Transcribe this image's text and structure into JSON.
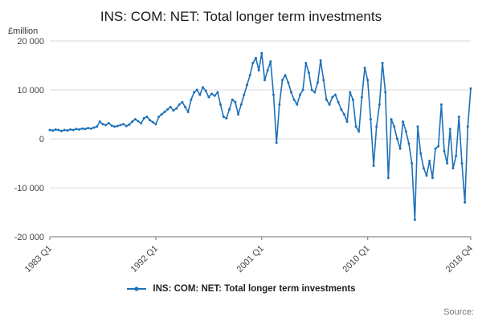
{
  "chart_data": {
    "type": "line",
    "title": "INS: COM: NET: Total longer term investments",
    "ylabel": "£million",
    "legend": "INS: COM: NET: Total longer term investments",
    "ylim": [
      -20000,
      20000
    ],
    "grid": "horizontal",
    "legend_position": "bottom",
    "line_color": "#1d70b8",
    "grid_color": "#d9d9d9",
    "axis_color": "#707070",
    "x_unit": "quarter",
    "yticks": [
      {
        "label": "20 000",
        "value": 20000
      },
      {
        "label": "10 000",
        "value": 10000
      },
      {
        "label": "0",
        "value": 0
      },
      {
        "label": "-10 000",
        "value": -10000
      },
      {
        "label": "-20 000",
        "value": -20000
      }
    ],
    "xticks": [
      {
        "label": "1983 Q1",
        "index": 0
      },
      {
        "label": "1992 Q1",
        "index": 36
      },
      {
        "label": "2001 Q1",
        "index": 72
      },
      {
        "label": "2010 Q1",
        "index": 108
      },
      {
        "label": "2018 Q4",
        "index": 143
      }
    ],
    "values": [
      1800,
      1700,
      1900,
      1800,
      1600,
      1800,
      1700,
      1900,
      1800,
      2000,
      1900,
      2100,
      2000,
      2200,
      2100,
      2300,
      2500,
      3500,
      3000,
      2800,
      3200,
      2700,
      2500,
      2600,
      2800,
      3000,
      2600,
      2900,
      3500,
      4000,
      3600,
      3200,
      4200,
      4500,
      3800,
      3400,
      3000,
      4500,
      5000,
      5500,
      6000,
      6500,
      5800,
      6200,
      7000,
      7500,
      6500,
      5500,
      8000,
      9500,
      10000,
      9000,
      10500,
      9800,
      8500,
      9200,
      8800,
      9500,
      7000,
      4500,
      4200,
      6000,
      8000,
      7500,
      5000,
      7000,
      9000,
      11000,
      13000,
      15500,
      16500,
      14000,
      17500,
      12000,
      14000,
      15800,
      9000,
      -800,
      7000,
      12000,
      13000,
      11500,
      9500,
      8000,
      7000,
      9000,
      10000,
      15500,
      13500,
      10000,
      9500,
      11500,
      16000,
      12000,
      8000,
      7000,
      8500,
      9000,
      7500,
      6000,
      5000,
      3500,
      9500,
      8000,
      2500,
      1500,
      8500,
      14500,
      12000,
      4000,
      -5500,
      2500,
      7000,
      15500,
      9500,
      -8000,
      4000,
      2500,
      0,
      -2000,
      3500,
      1500,
      -1000,
      -5000,
      -16500,
      2500,
      -3000,
      -6000,
      -7500,
      -4500,
      -8000,
      -2000,
      -1500,
      7000,
      -2500,
      -5000,
      2000,
      -6000,
      -3500,
      4500,
      -5000,
      -13000,
      2500,
      10300
    ]
  },
  "source": {
    "label": "Source:"
  }
}
